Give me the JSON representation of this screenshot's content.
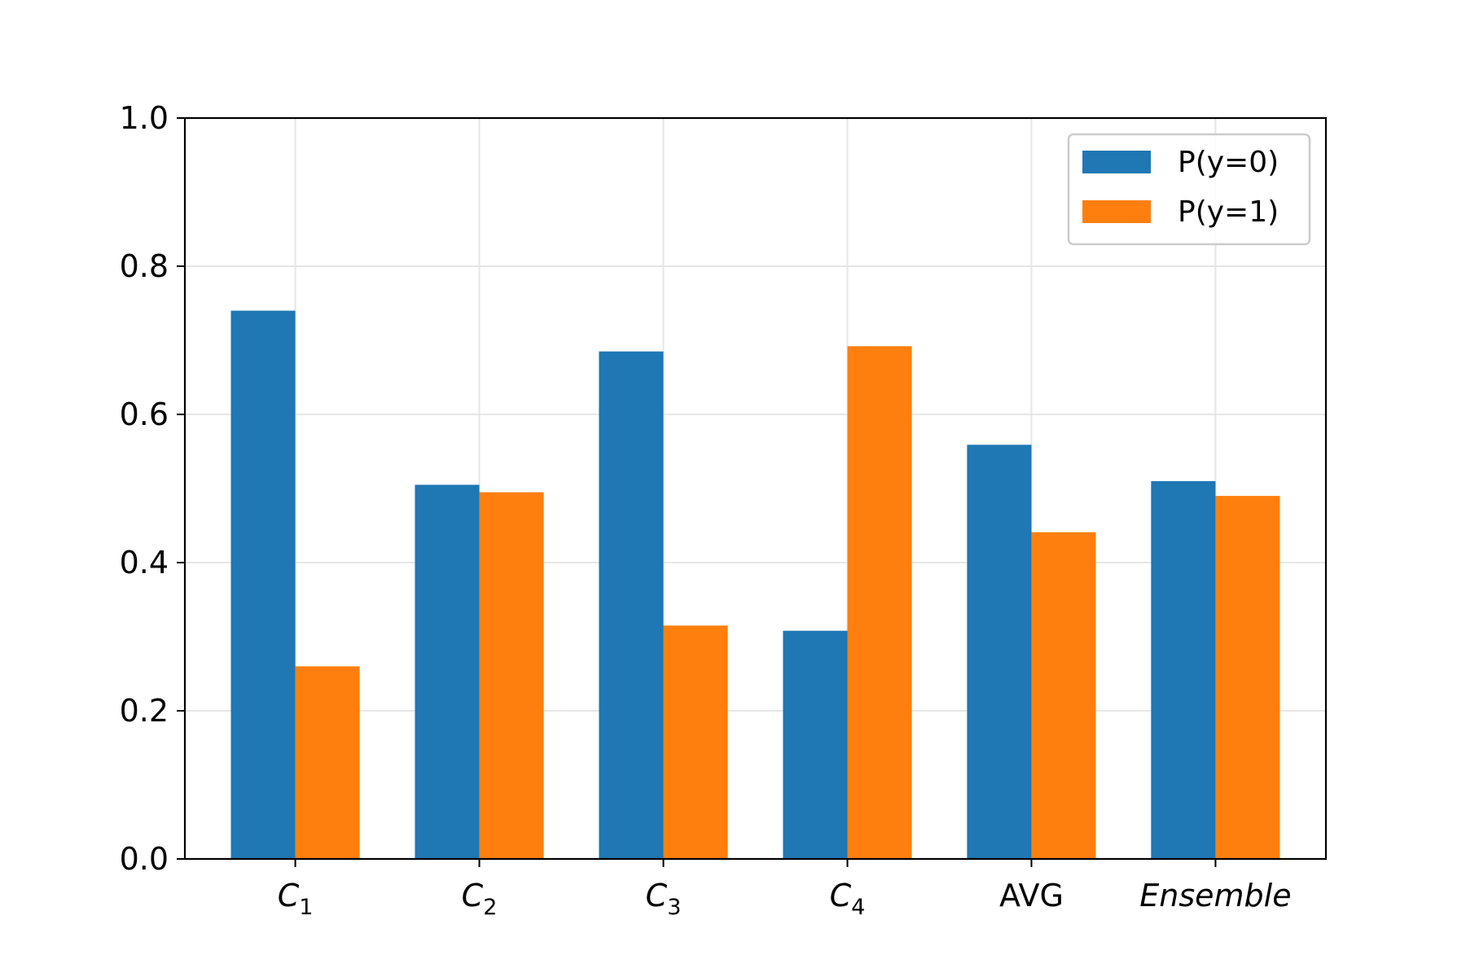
{
  "chart_data": {
    "type": "bar",
    "categories": [
      {
        "base": "C",
        "sub": "1",
        "italic": true
      },
      {
        "base": "C",
        "sub": "2",
        "italic": true
      },
      {
        "base": "C",
        "sub": "3",
        "italic": true
      },
      {
        "base": "C",
        "sub": "4",
        "italic": true
      },
      {
        "base": "AVG",
        "sub": "",
        "italic": false
      },
      {
        "base": "Ensemble",
        "sub": "",
        "italic": true
      }
    ],
    "series": [
      {
        "name": "P(y=0)",
        "color": "#1f77b4",
        "values": [
          0.74,
          0.505,
          0.685,
          0.308,
          0.559,
          0.51
        ]
      },
      {
        "name": "P(y=1)",
        "color": "#ff7f0e",
        "values": [
          0.26,
          0.495,
          0.315,
          0.692,
          0.441,
          0.49
        ]
      }
    ],
    "ylim": [
      0,
      1.0
    ],
    "yticks": [
      0.0,
      0.2,
      0.4,
      0.6,
      0.8,
      1.0
    ],
    "ytick_labels": [
      "0.0",
      "0.2",
      "0.4",
      "0.6",
      "0.8",
      "1.0"
    ],
    "grid": true,
    "legend_position": "top-right",
    "title": "",
    "xlabel": "",
    "ylabel": ""
  }
}
